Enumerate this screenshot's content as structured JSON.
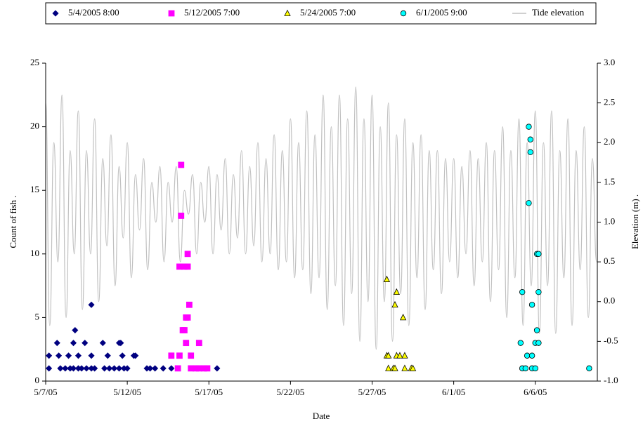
{
  "chart_data": {
    "type": "scatter",
    "xlabel": "Date",
    "ylabel": "Count of fish .",
    "y2label": "Elevation (m) .",
    "xlim": [
      0,
      33.8
    ],
    "xticks": [
      {
        "value": 0,
        "label": "5/7/05"
      },
      {
        "value": 5,
        "label": "5/12/05"
      },
      {
        "value": 10,
        "label": "5/17/05"
      },
      {
        "value": 15,
        "label": "5/22/05"
      },
      {
        "value": 20,
        "label": "5/27/05"
      },
      {
        "value": 25,
        "label": "6/1/05"
      },
      {
        "value": 30,
        "label": "6/6/05"
      }
    ],
    "ylim": [
      0,
      25
    ],
    "yticks": [
      0,
      5,
      10,
      15,
      20,
      25
    ],
    "y2lim": [
      -1,
      3
    ],
    "y2ticks": [
      {
        "value": -1,
        "label": "-1.0"
      },
      {
        "value": -0.5,
        "label": "-0.5"
      },
      {
        "value": 0,
        "label": "0.0"
      },
      {
        "value": 0.5,
        "label": "0.5"
      },
      {
        "value": 1,
        "label": "1.0"
      },
      {
        "value": 1.5,
        "label": "1.5"
      },
      {
        "value": 2,
        "label": "2.0"
      },
      {
        "value": 2.5,
        "label": "2.5"
      },
      {
        "value": 3,
        "label": "3.0"
      }
    ],
    "legend": "top",
    "series": [
      {
        "name": "5/4/2005 8:00",
        "marker": "diamond",
        "color": "#000080",
        "x": [
          0.2,
          0.9,
          1.2,
          1.5,
          1.7,
          2.0,
          2.2,
          2.5,
          2.8,
          3.0,
          3.6,
          3.9,
          4.2,
          4.5,
          4.8,
          5.0,
          6.2,
          6.4,
          6.7,
          7.2,
          7.7,
          10.5,
          0.2,
          0.8,
          1.4,
          2.0,
          2.8,
          3.8,
          4.7,
          5.4,
          5.5,
          0.7,
          1.7,
          2.4,
          3.5,
          4.5,
          4.6,
          1.8,
          2.8
        ],
        "values": [
          1,
          1,
          1,
          1,
          1,
          1,
          1,
          1,
          1,
          1,
          1,
          1,
          1,
          1,
          1,
          1,
          1,
          1,
          1,
          1,
          1,
          1,
          2,
          2,
          2,
          2,
          2,
          2,
          2,
          2,
          2,
          3,
          3,
          3,
          3,
          3,
          3,
          4,
          6
        ]
      },
      {
        "name": "5/12/2005 7:00",
        "marker": "square",
        "color": "#ff00ff",
        "x": [
          8.3,
          8.3,
          8.7,
          8.2,
          8.5,
          8.7,
          8.8,
          8.6,
          8.7,
          8.4,
          8.5,
          8.6,
          9.4,
          7.7,
          8.2,
          8.9,
          8.1,
          8.9,
          9.2,
          9.4,
          9.7,
          9.9
        ],
        "values": [
          17,
          13,
          10,
          9,
          9,
          9,
          6,
          5,
          5,
          4,
          4,
          3,
          3,
          2,
          2,
          2,
          1,
          1,
          1,
          1,
          1,
          1
        ]
      },
      {
        "name": "5/24/2005 7:00",
        "marker": "triangle",
        "color": "#ffff00",
        "x": [
          20.9,
          21.5,
          21.4,
          21.9,
          20.9,
          21.0,
          21.5,
          21.7,
          22.0,
          21.0,
          21.3,
          21.4,
          22.0,
          22.4,
          22.5
        ],
        "values": [
          8,
          7,
          6,
          5,
          2,
          2,
          2,
          2,
          2,
          1,
          1,
          1,
          1,
          1,
          1
        ]
      },
      {
        "name": "6/1/2005 9:00",
        "marker": "circle",
        "color": "#00ffff",
        "x": [
          29.6,
          29.7,
          29.7,
          29.6,
          30.1,
          30.2,
          29.2,
          30.2,
          29.8,
          30.1,
          29.1,
          30.0,
          30.2,
          29.5,
          29.8,
          29.2,
          29.4,
          29.8,
          30.0,
          33.3
        ],
        "values": [
          20,
          19,
          18,
          14,
          10,
          10,
          7,
          7,
          6,
          4,
          3,
          3,
          3,
          2,
          2,
          1,
          1,
          1,
          1,
          1
        ]
      },
      {
        "name": "Tide elevation",
        "marker": "line",
        "axis": "y2",
        "color": "#c0c0c0",
        "x": [
          0,
          0.25,
          0.5,
          0.75,
          1,
          1.25,
          1.5,
          1.75,
          2,
          2.25,
          2.5,
          2.75,
          3,
          3.25,
          3.5,
          3.75,
          4,
          4.25,
          4.5,
          4.75,
          5,
          5.25,
          5.5,
          5.75,
          6,
          6.25,
          6.5,
          6.75,
          7,
          7.25,
          7.5,
          7.75,
          8,
          8.25,
          8.5,
          8.75,
          9,
          9.25,
          9.5,
          9.75,
          10,
          10.25,
          10.5,
          10.75,
          11,
          11.25,
          11.5,
          11.75,
          12,
          12.25,
          12.5,
          12.75,
          13,
          13.25,
          13.5,
          13.75,
          14,
          14.25,
          14.5,
          14.75,
          15,
          15.25,
          15.5,
          15.75,
          16,
          16.25,
          16.5,
          16.75,
          17,
          17.25,
          17.5,
          17.75,
          18,
          18.25,
          18.5,
          18.75,
          19,
          19.25,
          19.5,
          19.75,
          20,
          20.25,
          20.5,
          20.75,
          21,
          21.25,
          21.5,
          21.75,
          22,
          22.25,
          22.5,
          22.75,
          23,
          23.25,
          23.5,
          23.75,
          24,
          24.25,
          24.5,
          24.75,
          25,
          25.25,
          25.5,
          25.75,
          26,
          26.25,
          26.5,
          26.75,
          27,
          27.25,
          27.5,
          27.75,
          28,
          28.25,
          28.5,
          28.75,
          29,
          29.25,
          29.5,
          29.75,
          30,
          30.25,
          30.5,
          30.75,
          31,
          31.25,
          31.5,
          31.75,
          32,
          32.25,
          32.5,
          32.75,
          33,
          33.25,
          33.5,
          33.75
        ],
        "values": [
          2.5,
          -0.3,
          2.0,
          0.5,
          2.6,
          -0.2,
          1.9,
          0.6,
          2.4,
          -0.1,
          1.9,
          0.6,
          2.3,
          0.0,
          1.8,
          0.7,
          2.1,
          0.2,
          1.7,
          0.8,
          2.0,
          0.3,
          1.6,
          0.9,
          1.8,
          0.4,
          1.5,
          1.0,
          1.7,
          0.5,
          1.5,
          1.0,
          1.7,
          0.5,
          1.4,
          1.1,
          1.6,
          0.6,
          1.5,
          1.0,
          1.7,
          0.6,
          1.6,
          0.9,
          1.8,
          0.6,
          1.6,
          0.8,
          1.9,
          0.6,
          1.7,
          0.7,
          2.0,
          0.5,
          1.8,
          0.6,
          2.1,
          0.4,
          1.9,
          0.5,
          2.3,
          0.3,
          2.0,
          0.4,
          2.4,
          0.1,
          2.1,
          0.3,
          2.6,
          -0.1,
          2.2,
          0.2,
          2.6,
          -0.3,
          2.3,
          0.1,
          2.7,
          -0.5,
          2.3,
          0.0,
          2.6,
          -0.6,
          2.2,
          0.0,
          2.5,
          -0.5,
          2.1,
          0.1,
          2.3,
          -0.3,
          2.0,
          0.3,
          2.1,
          -0.1,
          1.9,
          0.4,
          1.9,
          0.1,
          1.8,
          0.5,
          1.8,
          0.3,
          1.7,
          0.6,
          1.9,
          0.2,
          1.8,
          0.5,
          2.0,
          0.0,
          1.9,
          0.4,
          2.2,
          -0.2,
          1.9,
          0.3,
          2.3,
          -0.3,
          2.0,
          0.2,
          2.4,
          -0.4,
          2.0,
          0.2,
          2.4,
          -0.4,
          1.9,
          0.3,
          2.3,
          -0.3,
          1.9,
          0.4,
          2.2,
          -0.2,
          1.8,
          0.5
        ]
      }
    ]
  }
}
